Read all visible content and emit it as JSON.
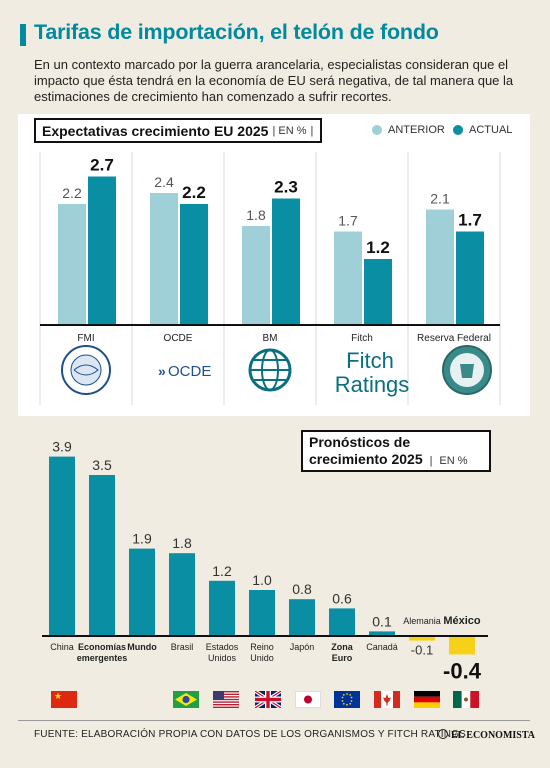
{
  "title": "Tarifas de importación, el telón de fondo",
  "intro": "En un contexto marcado por la guerra arancelaria, especialistas consideran que el impacto que ésta tendrá en la economía de EU será negativa, de tal manera que la estimaciones de crecimiento han comenzado a sufrir recortes.",
  "source": "FUENTE: ELABORACIÓN PROPIA CON DATOS DE LOS ORGANISMOS Y FITCH RATINGS",
  "brand": "EL ECONOMISTA",
  "colors": {
    "anterior": "#9fd0d8",
    "actual": "#0a8ea3",
    "accent": "#008aa0",
    "negative": "#f7d117"
  },
  "chart_data": [
    {
      "type": "bar",
      "title": "Expectativas crecimiento EU 2025",
      "unit": "EN %",
      "categories": [
        "FMI",
        "OCDE",
        "BM",
        "Fitch",
        "Reserva Federal"
      ],
      "series": [
        {
          "name": "ANTERIOR",
          "values": [
            2.2,
            2.4,
            1.8,
            1.7,
            2.1
          ]
        },
        {
          "name": "ACTUAL",
          "values": [
            2.7,
            2.2,
            2.3,
            1.2,
            1.7
          ]
        }
      ],
      "logos": [
        "imf-seal-icon",
        "ocde-logo-icon",
        "globe-icon",
        "fitch-ratings-logo",
        "federal-reserve-seal-icon"
      ],
      "fitch_logo_text": [
        "Fitch",
        "Ratings"
      ],
      "ocde_logo_text": "OCDE",
      "legend_position": "top-right"
    },
    {
      "type": "bar",
      "title": "Pronósticos de crecimiento 2025",
      "title_lines": [
        "Pronósticos de",
        "crecimiento 2025"
      ],
      "unit": "EN %",
      "categories": [
        "China",
        "Economías emergentes",
        "Mundo",
        "Brasil",
        "Estados Unidos",
        "Reino Unido",
        "Japón",
        "Zona Euro",
        "Canadá",
        "Alemania",
        "México"
      ],
      "category_lines": [
        [
          "China"
        ],
        [
          "Economías",
          "emergentes"
        ],
        [
          "Mundo"
        ],
        [
          "Brasil"
        ],
        [
          "Estados",
          "Unidos"
        ],
        [
          "Reino",
          "Unido"
        ],
        [
          "Japón"
        ],
        [
          "Zona",
          "Euro"
        ],
        [
          "Canadá"
        ],
        [
          "Alemania"
        ],
        [
          "México"
        ]
      ],
      "bold_categories": [
        "Economías emergentes",
        "Mundo",
        "Zona Euro",
        "México"
      ],
      "values": [
        3.9,
        3.5,
        1.9,
        1.8,
        1.2,
        1.0,
        0.8,
        0.6,
        0.1,
        -0.1,
        -0.4
      ],
      "value_labels": [
        "3.9",
        "3.5",
        "1.9",
        "1.8",
        "1.2",
        "1.0",
        "0.8",
        "0.6",
        "0.1",
        "-0.1",
        "-0.4"
      ],
      "flags": [
        "china-flag-icon",
        null,
        null,
        "brazil-flag-icon",
        "usa-flag-icon",
        "uk-flag-icon",
        "japan-flag-icon",
        "eu-flag-icon",
        "canada-flag-icon",
        "germany-flag-icon",
        "mexico-flag-icon"
      ]
    }
  ]
}
